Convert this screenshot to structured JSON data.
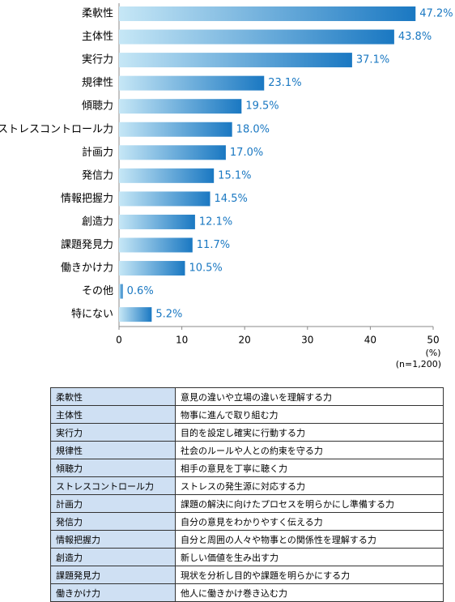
{
  "chart_data": {
    "type": "bar",
    "orientation": "horizontal",
    "categories": [
      "柔軟性",
      "主体性",
      "実行力",
      "規律性",
      "傾聴力",
      "ストレスコントロール力",
      "計画力",
      "発信力",
      "情報把握力",
      "創造力",
      "課題発見力",
      "働きかけ力",
      "その他",
      "特にない"
    ],
    "values": [
      47.2,
      43.8,
      37.1,
      23.1,
      19.5,
      18.0,
      17.0,
      15.1,
      14.5,
      12.1,
      11.7,
      10.5,
      0.6,
      5.2
    ],
    "value_labels": [
      "47.2%",
      "43.8%",
      "37.1%",
      "23.1%",
      "19.5%",
      "18.0%",
      "17.0%",
      "15.1%",
      "14.5%",
      "12.1%",
      "11.7%",
      "10.5%",
      "0.6%",
      "5.2%"
    ],
    "colors": [
      "#c6e7f6",
      "#1a78c2"
    ],
    "label_color": "#1a78c2",
    "xlim": [
      0,
      50
    ],
    "xticks": [
      0,
      10,
      20,
      30,
      40,
      50
    ],
    "unit": "(%)",
    "note": "(n=1,200)"
  },
  "table": {
    "rows": [
      [
        "柔軟性",
        "意見の違いや立場の違いを理解する力"
      ],
      [
        "主体性",
        "物事に進んで取り組む力"
      ],
      [
        "実行力",
        "目的を設定し確実に行動する力"
      ],
      [
        "規律性",
        "社会のルールや人との約束を守る力"
      ],
      [
        "傾聴力",
        "相手の意見を丁寧に聴く力"
      ],
      [
        "ストレスコントロール力",
        "ストレスの発生源に対応する力"
      ],
      [
        "計画力",
        "課題の解決に向けたプロセスを明らかにし準備する力"
      ],
      [
        "発信力",
        "自分の意見をわかりやすく伝える力"
      ],
      [
        "情報把握力",
        "自分と周囲の人々や物事との関係性を理解する力"
      ],
      [
        "創造力",
        "新しい価値を生み出す力"
      ],
      [
        "課題発見力",
        "現状を分析し目的や課題を明らかにする力"
      ],
      [
        "働きかけ力",
        "他人に働きかけ巻き込む力"
      ]
    ]
  }
}
